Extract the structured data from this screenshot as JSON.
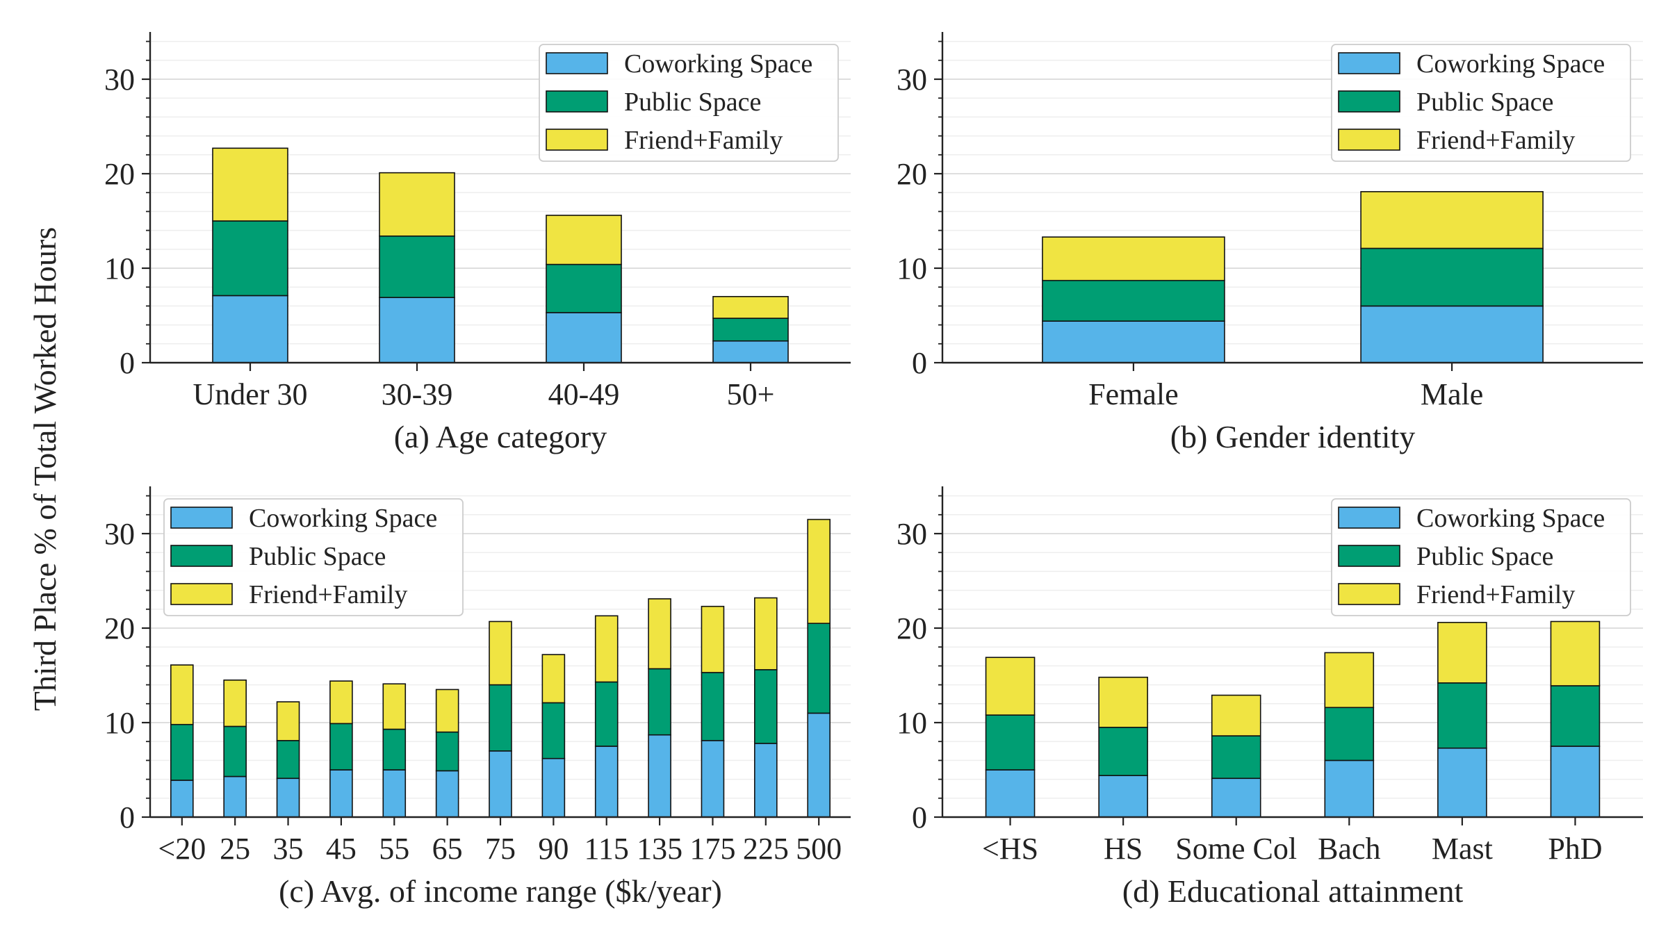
{
  "figure": {
    "ylabel": "Third Place % of Total Worked Hours"
  },
  "colors": {
    "coworking": "#56b4e9",
    "public": "#009e73",
    "friend_family": "#f0e442",
    "axis": "#222222",
    "grid_major": "#d9d9d9",
    "grid_minor": "#eeeeee"
  },
  "chart_data": [
    {
      "id": "age",
      "type": "bar",
      "stacked": true,
      "title": "(a) Age category",
      "categories": [
        "Under 30",
        "30-39",
        "40-49",
        "50+"
      ],
      "series": [
        {
          "name": "Coworking Space",
          "values": [
            7.1,
            6.9,
            5.3,
            2.3
          ]
        },
        {
          "name": "Public Space",
          "values": [
            7.9,
            6.5,
            5.1,
            2.4
          ]
        },
        {
          "name": "Friend+Family",
          "values": [
            7.7,
            6.7,
            5.2,
            2.3
          ]
        }
      ],
      "ylim": [
        0,
        35
      ],
      "yticks": [
        0,
        10,
        20,
        30
      ],
      "legend": "top-right"
    },
    {
      "id": "gender",
      "type": "bar",
      "stacked": true,
      "title": "(b) Gender identity",
      "categories": [
        "Female",
        "Male"
      ],
      "series": [
        {
          "name": "Coworking Space",
          "values": [
            4.4,
            6.0
          ]
        },
        {
          "name": "Public Space",
          "values": [
            4.3,
            6.1
          ]
        },
        {
          "name": "Friend+Family",
          "values": [
            4.6,
            6.0
          ]
        }
      ],
      "ylim": [
        0,
        35
      ],
      "yticks": [
        0,
        10,
        20,
        30
      ],
      "legend": "top-right"
    },
    {
      "id": "income",
      "type": "bar",
      "stacked": true,
      "title": "(c) Avg. of income range ($k/year)",
      "categories": [
        "<20",
        "25",
        "35",
        "45",
        "55",
        "65",
        "75",
        "90",
        "115",
        "135",
        "175",
        "225",
        "500"
      ],
      "series": [
        {
          "name": "Coworking Space",
          "values": [
            3.9,
            4.3,
            4.1,
            5.0,
            5.0,
            4.9,
            7.0,
            6.2,
            7.5,
            8.7,
            8.1,
            7.8,
            11.0
          ]
        },
        {
          "name": "Public Space",
          "values": [
            5.9,
            5.3,
            4.0,
            4.9,
            4.3,
            4.1,
            7.0,
            5.9,
            6.8,
            7.0,
            7.2,
            7.8,
            9.5
          ]
        },
        {
          "name": "Friend+Family",
          "values": [
            6.3,
            4.9,
            4.1,
            4.5,
            4.8,
            4.5,
            6.7,
            5.1,
            7.0,
            7.4,
            7.0,
            7.6,
            11.0
          ]
        }
      ],
      "ylim": [
        0,
        35
      ],
      "yticks": [
        0,
        10,
        20,
        30
      ],
      "legend": "top-left"
    },
    {
      "id": "education",
      "type": "bar",
      "stacked": true,
      "title": "(d) Educational attainment",
      "categories": [
        "<HS",
        "HS",
        "Some Col",
        "Bach",
        "Mast",
        "PhD"
      ],
      "series": [
        {
          "name": "Coworking Space",
          "values": [
            5.0,
            4.4,
            4.1,
            6.0,
            7.3,
            7.5
          ]
        },
        {
          "name": "Public Space",
          "values": [
            5.8,
            5.1,
            4.5,
            5.6,
            6.9,
            6.4
          ]
        },
        {
          "name": "Friend+Family",
          "values": [
            6.1,
            5.3,
            4.3,
            5.8,
            6.4,
            6.8
          ]
        }
      ],
      "ylim": [
        0,
        35
      ],
      "yticks": [
        0,
        10,
        20,
        30
      ],
      "legend": "top-right"
    }
  ]
}
